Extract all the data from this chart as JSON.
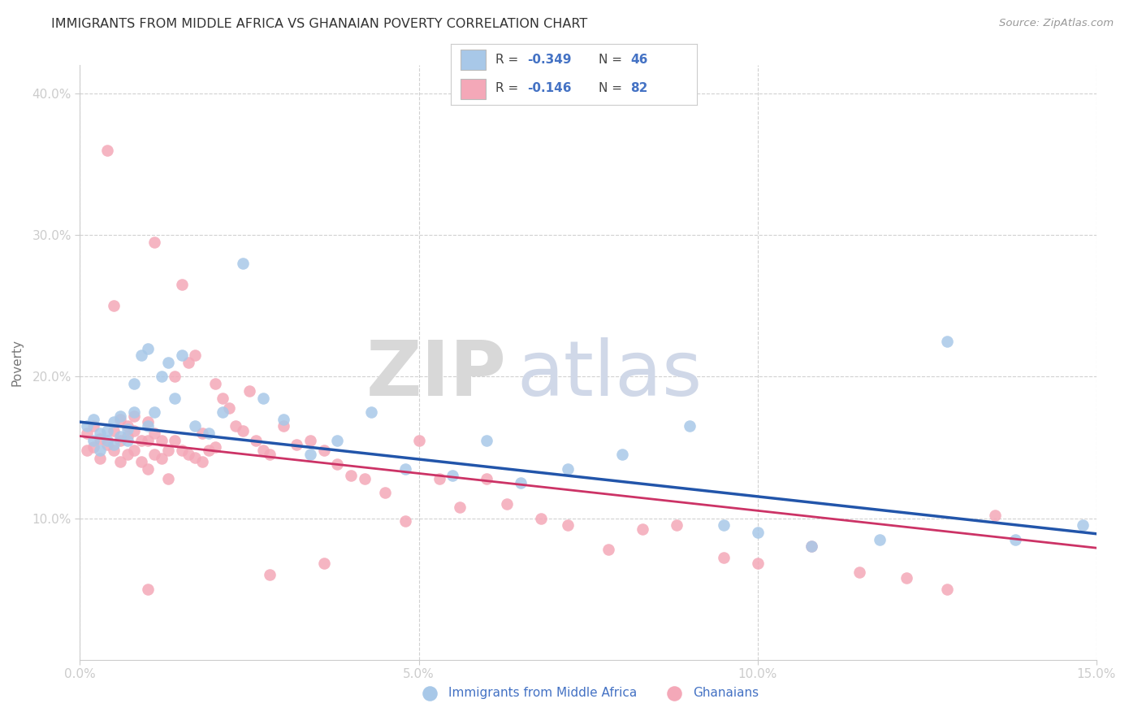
{
  "title": "IMMIGRANTS FROM MIDDLE AFRICA VS GHANAIAN POVERTY CORRELATION CHART",
  "source": "Source: ZipAtlas.com",
  "ylabel": "Poverty",
  "xlim": [
    0.0,
    0.15
  ],
  "ylim": [
    0.0,
    0.42
  ],
  "x_ticks": [
    0.0,
    0.05,
    0.1,
    0.15
  ],
  "x_tick_labels": [
    "0.0%",
    "5.0%",
    "10.0%",
    "15.0%"
  ],
  "y_ticks": [
    0.1,
    0.2,
    0.3,
    0.4
  ],
  "y_tick_labels": [
    "10.0%",
    "20.0%",
    "30.0%",
    "40.0%"
  ],
  "blue_color": "#a8c8e8",
  "pink_color": "#f4a8b8",
  "blue_line_color": "#2255aa",
  "pink_line_color": "#cc3366",
  "tick_color": "#4472c4",
  "title_color": "#333333",
  "blue_label": "Immigrants from Middle Africa",
  "pink_label": "Ghanaians",
  "blue_x": [
    0.001,
    0.002,
    0.002,
    0.003,
    0.003,
    0.004,
    0.004,
    0.005,
    0.005,
    0.006,
    0.006,
    0.007,
    0.007,
    0.008,
    0.008,
    0.009,
    0.01,
    0.01,
    0.011,
    0.012,
    0.013,
    0.014,
    0.015,
    0.017,
    0.019,
    0.021,
    0.024,
    0.027,
    0.03,
    0.034,
    0.038,
    0.043,
    0.048,
    0.055,
    0.06,
    0.065,
    0.072,
    0.08,
    0.09,
    0.095,
    0.1,
    0.108,
    0.118,
    0.128,
    0.138,
    0.148
  ],
  "blue_y": [
    0.165,
    0.17,
    0.155,
    0.16,
    0.148,
    0.162,
    0.155,
    0.168,
    0.152,
    0.158,
    0.172,
    0.163,
    0.155,
    0.175,
    0.195,
    0.215,
    0.22,
    0.165,
    0.175,
    0.2,
    0.21,
    0.185,
    0.215,
    0.165,
    0.16,
    0.175,
    0.28,
    0.185,
    0.17,
    0.145,
    0.155,
    0.175,
    0.135,
    0.13,
    0.155,
    0.125,
    0.135,
    0.145,
    0.165,
    0.095,
    0.09,
    0.08,
    0.085,
    0.225,
    0.085,
    0.095
  ],
  "pink_x": [
    0.001,
    0.001,
    0.002,
    0.002,
    0.003,
    0.003,
    0.004,
    0.004,
    0.005,
    0.005,
    0.005,
    0.006,
    0.006,
    0.006,
    0.007,
    0.007,
    0.007,
    0.008,
    0.008,
    0.008,
    0.009,
    0.009,
    0.01,
    0.01,
    0.01,
    0.011,
    0.011,
    0.011,
    0.012,
    0.012,
    0.013,
    0.013,
    0.014,
    0.014,
    0.015,
    0.015,
    0.016,
    0.016,
    0.017,
    0.017,
    0.018,
    0.018,
    0.019,
    0.02,
    0.02,
    0.021,
    0.022,
    0.023,
    0.024,
    0.025,
    0.026,
    0.027,
    0.028,
    0.03,
    0.032,
    0.034,
    0.036,
    0.038,
    0.04,
    0.042,
    0.045,
    0.048,
    0.05,
    0.053,
    0.056,
    0.06,
    0.063,
    0.068,
    0.072,
    0.078,
    0.083,
    0.088,
    0.095,
    0.1,
    0.108,
    0.115,
    0.122,
    0.128,
    0.135,
    0.028,
    0.036,
    0.01
  ],
  "pink_y": [
    0.16,
    0.148,
    0.165,
    0.15,
    0.156,
    0.142,
    0.152,
    0.36,
    0.162,
    0.148,
    0.25,
    0.155,
    0.14,
    0.17,
    0.158,
    0.145,
    0.165,
    0.162,
    0.148,
    0.172,
    0.155,
    0.14,
    0.168,
    0.155,
    0.135,
    0.295,
    0.16,
    0.145,
    0.155,
    0.142,
    0.148,
    0.128,
    0.2,
    0.155,
    0.265,
    0.148,
    0.21,
    0.145,
    0.215,
    0.143,
    0.16,
    0.14,
    0.148,
    0.195,
    0.15,
    0.185,
    0.178,
    0.165,
    0.162,
    0.19,
    0.155,
    0.148,
    0.145,
    0.165,
    0.152,
    0.155,
    0.148,
    0.138,
    0.13,
    0.128,
    0.118,
    0.098,
    0.155,
    0.128,
    0.108,
    0.128,
    0.11,
    0.1,
    0.095,
    0.078,
    0.092,
    0.095,
    0.072,
    0.068,
    0.08,
    0.062,
    0.058,
    0.05,
    0.102,
    0.06,
    0.068,
    0.05
  ],
  "blue_line_x": [
    0.0,
    0.15
  ],
  "blue_line_y": [
    0.168,
    0.089
  ],
  "pink_line_x": [
    0.0,
    0.15
  ],
  "pink_line_y": [
    0.158,
    0.079
  ]
}
